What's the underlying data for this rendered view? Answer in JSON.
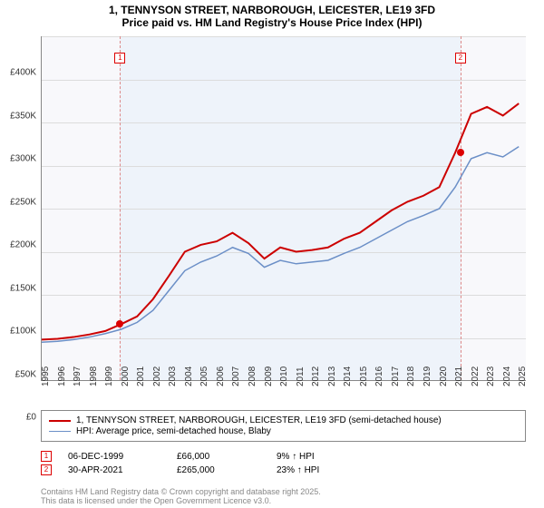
{
  "title_line1": "1, TENNYSON STREET, NARBOROUGH, LEICESTER, LE19 3FD",
  "title_line2": "Price paid vs. HM Land Registry's House Price Index (HPI)",
  "chart": {
    "type": "line",
    "background_color": "#f8f8fb",
    "shaded_color": "#eef3fa",
    "grid_color": "#dcdcdc",
    "x_years": [
      "1995",
      "1996",
      "1997",
      "1998",
      "1999",
      "2000",
      "2001",
      "2002",
      "2003",
      "2004",
      "2005",
      "2006",
      "2007",
      "2008",
      "2009",
      "2010",
      "2011",
      "2012",
      "2013",
      "2014",
      "2015",
      "2016",
      "2017",
      "2018",
      "2019",
      "2020",
      "2021",
      "2022",
      "2023",
      "2024",
      "2025"
    ],
    "xlim": [
      1995,
      2025.5
    ],
    "ylim": [
      0,
      400000
    ],
    "ytick_step": 50000,
    "y_labels": [
      "£0",
      "£50K",
      "£100K",
      "£150K",
      "£200K",
      "£250K",
      "£300K",
      "£350K",
      "£400K"
    ],
    "series": [
      {
        "name": "price_paid",
        "color": "#cc0000",
        "width": 2,
        "data": [
          [
            1995,
            48000
          ],
          [
            1996,
            49000
          ],
          [
            1997,
            51000
          ],
          [
            1998,
            54000
          ],
          [
            1999,
            58000
          ],
          [
            2000,
            66000
          ],
          [
            2001,
            75000
          ],
          [
            2002,
            95000
          ],
          [
            2003,
            122000
          ],
          [
            2004,
            150000
          ],
          [
            2005,
            158000
          ],
          [
            2006,
            162000
          ],
          [
            2007,
            172000
          ],
          [
            2008,
            160000
          ],
          [
            2009,
            142000
          ],
          [
            2010,
            155000
          ],
          [
            2011,
            150000
          ],
          [
            2012,
            152000
          ],
          [
            2013,
            155000
          ],
          [
            2014,
            165000
          ],
          [
            2015,
            172000
          ],
          [
            2016,
            185000
          ],
          [
            2017,
            198000
          ],
          [
            2018,
            208000
          ],
          [
            2019,
            215000
          ],
          [
            2020,
            225000
          ],
          [
            2021,
            265000
          ],
          [
            2022,
            310000
          ],
          [
            2023,
            318000
          ],
          [
            2024,
            308000
          ],
          [
            2025,
            322000
          ]
        ]
      },
      {
        "name": "hpi",
        "color": "#6b8fc7",
        "width": 1.5,
        "data": [
          [
            1995,
            45000
          ],
          [
            1996,
            46000
          ],
          [
            1997,
            48000
          ],
          [
            1998,
            51000
          ],
          [
            1999,
            55000
          ],
          [
            2000,
            60000
          ],
          [
            2001,
            68000
          ],
          [
            2002,
            82000
          ],
          [
            2003,
            105000
          ],
          [
            2004,
            128000
          ],
          [
            2005,
            138000
          ],
          [
            2006,
            145000
          ],
          [
            2007,
            155000
          ],
          [
            2008,
            148000
          ],
          [
            2009,
            132000
          ],
          [
            2010,
            140000
          ],
          [
            2011,
            136000
          ],
          [
            2012,
            138000
          ],
          [
            2013,
            140000
          ],
          [
            2014,
            148000
          ],
          [
            2015,
            155000
          ],
          [
            2016,
            165000
          ],
          [
            2017,
            175000
          ],
          [
            2018,
            185000
          ],
          [
            2019,
            192000
          ],
          [
            2020,
            200000
          ],
          [
            2021,
            225000
          ],
          [
            2022,
            258000
          ],
          [
            2023,
            265000
          ],
          [
            2024,
            260000
          ],
          [
            2025,
            272000
          ]
        ]
      }
    ],
    "markers": [
      {
        "label": "1",
        "year": 1999.93,
        "value": 66000
      },
      {
        "label": "2",
        "year": 2021.33,
        "value": 265000
      }
    ],
    "shaded_range": [
      1999.93,
      2021.33
    ]
  },
  "legend": {
    "items": [
      {
        "color": "#cc0000",
        "width": 2,
        "label": "1, TENNYSON STREET, NARBOROUGH, LEICESTER, LE19 3FD (semi-detached house)"
      },
      {
        "color": "#6b8fc7",
        "width": 1.5,
        "label": "HPI: Average price, semi-detached house, Blaby"
      }
    ]
  },
  "events": [
    {
      "num": "1",
      "date": "06-DEC-1999",
      "price": "£66,000",
      "delta": "9% ↑ HPI"
    },
    {
      "num": "2",
      "date": "30-APR-2021",
      "price": "£265,000",
      "delta": "23% ↑ HPI"
    }
  ],
  "copyright_line1": "Contains HM Land Registry data © Crown copyright and database right 2025.",
  "copyright_line2": "This data is licensed under the Open Government Licence v3.0."
}
